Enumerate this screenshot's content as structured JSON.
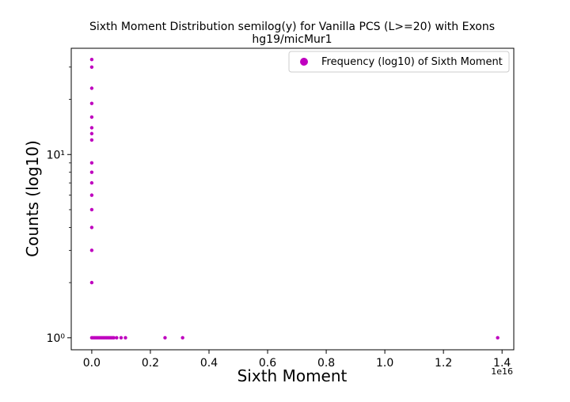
{
  "chart_data": {
    "type": "scatter",
    "title": "Sixth Moment Distribution semilog(y) for Vanilla PCS (L>=20) with Exons",
    "subtitle": "hg19/micMur1",
    "xlabel": "Sixth Moment",
    "ylabel": "Counts (log10)",
    "x_offset_label": "1e16",
    "y_scale": "log",
    "xlim": [
      -0.07,
      1.44
    ],
    "ylim": [
      0.86,
      38
    ],
    "grid": false,
    "legend_position": "top-right",
    "x_ticks": [
      0.0,
      0.2,
      0.4,
      0.6,
      0.8,
      1.0,
      1.2,
      1.4
    ],
    "x_tick_labels": [
      "0.0",
      "0.2",
      "0.4",
      "0.6",
      "0.8",
      "1.0",
      "1.2",
      "1.4"
    ],
    "y_ticks_major": [
      1,
      10
    ],
    "y_tick_labels": [
      "10⁰",
      "10¹"
    ],
    "y_ticks_minor": [
      2,
      3,
      4,
      5,
      6,
      7,
      8,
      9,
      20,
      30
    ],
    "color": "#bf00bf",
    "series": [
      {
        "name": "Frequency (log10) of Sixth Moment",
        "points": [
          {
            "x": 0.0,
            "y": 33
          },
          {
            "x": 0.0,
            "y": 30
          },
          {
            "x": 0.0,
            "y": 23
          },
          {
            "x": 0.0,
            "y": 19
          },
          {
            "x": 0.0,
            "y": 16
          },
          {
            "x": 0.0,
            "y": 14
          },
          {
            "x": 0.0,
            "y": 13
          },
          {
            "x": 0.0,
            "y": 12
          },
          {
            "x": 0.0,
            "y": 9
          },
          {
            "x": 0.0,
            "y": 8
          },
          {
            "x": 0.0,
            "y": 7
          },
          {
            "x": 0.0,
            "y": 6
          },
          {
            "x": 0.0,
            "y": 5
          },
          {
            "x": 0.0,
            "y": 4
          },
          {
            "x": 0.0,
            "y": 3
          },
          {
            "x": 0.0,
            "y": 2
          },
          {
            "x": 0.0,
            "y": 1
          },
          {
            "x": 0.005,
            "y": 1
          },
          {
            "x": 0.01,
            "y": 1
          },
          {
            "x": 0.015,
            "y": 1
          },
          {
            "x": 0.02,
            "y": 1
          },
          {
            "x": 0.025,
            "y": 1
          },
          {
            "x": 0.03,
            "y": 1
          },
          {
            "x": 0.035,
            "y": 1
          },
          {
            "x": 0.04,
            "y": 1
          },
          {
            "x": 0.045,
            "y": 1
          },
          {
            "x": 0.05,
            "y": 1
          },
          {
            "x": 0.055,
            "y": 1
          },
          {
            "x": 0.06,
            "y": 1
          },
          {
            "x": 0.065,
            "y": 1
          },
          {
            "x": 0.07,
            "y": 1
          },
          {
            "x": 0.075,
            "y": 1
          },
          {
            "x": 0.085,
            "y": 1
          },
          {
            "x": 0.1,
            "y": 1
          },
          {
            "x": 0.115,
            "y": 1
          },
          {
            "x": 0.25,
            "y": 1
          },
          {
            "x": 0.31,
            "y": 1
          },
          {
            "x": 1.385,
            "y": 1
          }
        ]
      }
    ]
  }
}
